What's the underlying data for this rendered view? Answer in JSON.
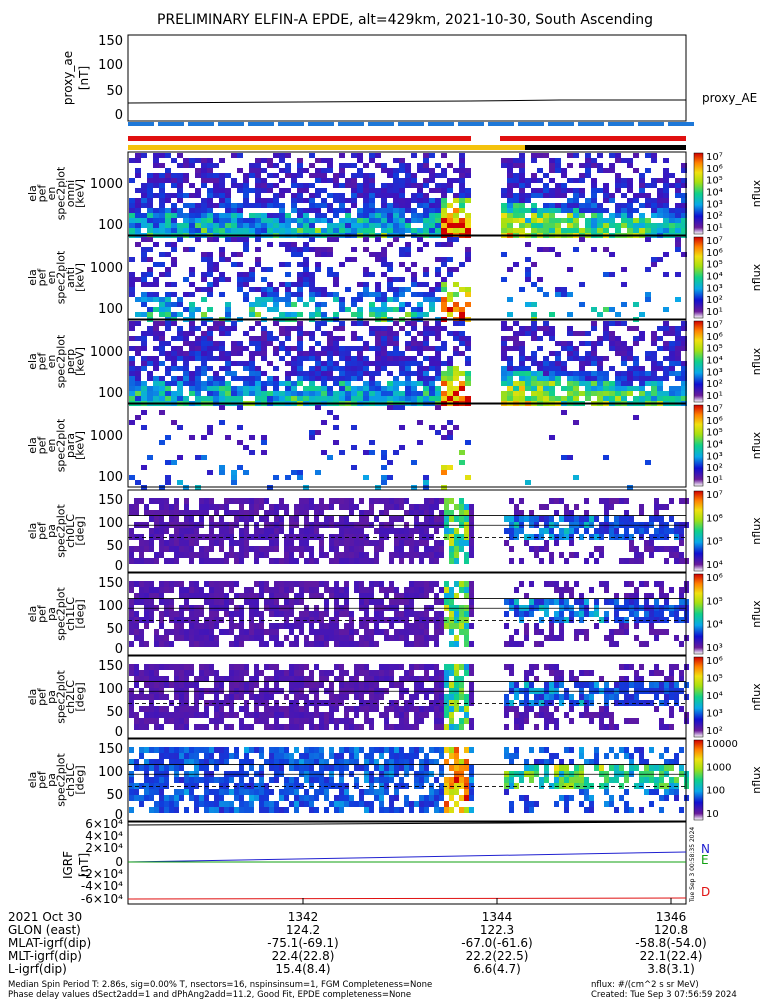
{
  "title": "PRELIMINARY ELFIN-A EPDE, alt=429km, 2021-10-30, South Ascending",
  "colors": {
    "black": "#000000",
    "state_blue": "#1e78d8",
    "state_red": "#e01010",
    "state_yellow": "#f4c20c",
    "n_line": "#2020d0",
    "e_line": "#10a010",
    "d_line": "#e01010"
  },
  "proxy_ae": {
    "ylabel": [
      "proxy_ae",
      "[nT]"
    ],
    "yticks": [
      "150",
      "100",
      "50",
      "0"
    ],
    "label": "proxy_AE",
    "ylim": [
      0,
      160
    ]
  },
  "energy_panels": [
    {
      "ylabel": [
        "ela",
        "pef",
        "en",
        "spec2plot",
        "omni",
        "[keV]"
      ],
      "yticks": [
        "1000",
        "100"
      ],
      "cb_ticks": [
        "10⁷",
        "10⁶",
        "10⁵",
        "10⁴",
        "10³",
        "10²",
        "10¹"
      ],
      "cb_label": "nflux"
    },
    {
      "ylabel": [
        "ela",
        "pef",
        "en",
        "spec2plot",
        "anti",
        "[keV]"
      ],
      "yticks": [
        "1000",
        "100"
      ],
      "cb_ticks": [
        "10⁷",
        "10⁶",
        "10⁵",
        "10⁴",
        "10³",
        "10²",
        "10¹"
      ],
      "cb_label": "nflux"
    },
    {
      "ylabel": [
        "ela",
        "pef",
        "en",
        "spec2plot",
        "perp",
        "[keV]"
      ],
      "yticks": [
        "1000",
        "100"
      ],
      "cb_ticks": [
        "10⁷",
        "10⁶",
        "10⁵",
        "10⁴",
        "10³",
        "10²",
        "10¹"
      ],
      "cb_label": "nflux"
    },
    {
      "ylabel": [
        "ela",
        "pef",
        "en",
        "spec2plot",
        "para",
        "[keV]"
      ],
      "yticks": [
        "1000",
        "100"
      ],
      "cb_ticks": [
        "10⁷",
        "10⁶",
        "10⁵",
        "10⁴",
        "10³",
        "10²",
        "10¹"
      ],
      "cb_label": "nflux"
    }
  ],
  "pitch_panels": [
    {
      "ylabel": [
        "ela",
        "pef",
        "pa",
        "spec2plot",
        "ch0LC",
        "[deg]"
      ],
      "yticks": [
        "150",
        "100",
        "50",
        "0"
      ],
      "cb_ticks": [
        "10⁷",
        "10⁶",
        "10⁵",
        "10⁴"
      ],
      "cb_label": "nflux"
    },
    {
      "ylabel": [
        "ela",
        "pef",
        "pa",
        "spec2plot",
        "ch1LC",
        "[deg]"
      ],
      "yticks": [
        "150",
        "100",
        "50",
        "0"
      ],
      "cb_ticks": [
        "10⁶",
        "10⁵",
        "10⁴",
        "10³"
      ],
      "cb_label": "nflux"
    },
    {
      "ylabel": [
        "ela",
        "pef",
        "pa",
        "spec2plot",
        "ch2LC",
        "[deg]"
      ],
      "yticks": [
        "150",
        "100",
        "50",
        "0"
      ],
      "cb_ticks": [
        "10⁶",
        "10⁵",
        "10⁴",
        "10³",
        "10²"
      ],
      "cb_label": "nflux"
    },
    {
      "ylabel": [
        "ela",
        "pef",
        "pa",
        "spec2plot",
        "ch3LC",
        "[deg]"
      ],
      "yticks": [
        "150",
        "100",
        "50",
        "0"
      ],
      "cb_ticks": [
        "10000",
        "1000",
        "100",
        "10"
      ],
      "cb_label": "nflux"
    }
  ],
  "igrf": {
    "ylabel": [
      "IGRF",
      "[nT]"
    ],
    "yticks": [
      "6×10⁴",
      "4×10⁴",
      "2×10⁴",
      "0",
      "-2×10⁴",
      "-4×10⁴",
      "-6×10⁴"
    ],
    "legend": [
      "N",
      "E",
      "D"
    ],
    "side_text": "Tue Sep 3 00:58:35 2024"
  },
  "footer": {
    "rows": [
      {
        "label": "2021 Oct 30",
        "values": [
          "1342",
          "1344",
          "1346"
        ]
      },
      {
        "label": "GLON (east)",
        "values": [
          "124.2",
          "122.3",
          "120.8"
        ]
      },
      {
        "label": "MLAT-igrf(dip)",
        "values": [
          "-75.1(-69.1)",
          "-67.0(-61.6)",
          "-58.8(-54.0)"
        ]
      },
      {
        "label": "MLT-igrf(dip)",
        "values": [
          "22.4(22.8)",
          "22.2(22.5)",
          "22.1(22.4)"
        ]
      },
      {
        "label": "L-igrf(dip)",
        "values": [
          "15.4(8.4)",
          "6.6(4.7)",
          "3.8(3.1)"
        ]
      }
    ],
    "note_left_1": "Median Spin Period T: 2.86s, sig=0.00% T, nsectors=16, nspinsinsum=1, FGM Completeness=None",
    "note_left_2": "Phase delay values dSect2add=1 and dPhAng2add=11.2, Good Fit, EPDE completeness=None",
    "note_right_1": "nflux: #/(cm^2 s sr MeV)",
    "note_right_2": "Created: Tue Sep  3 07:56:59 2024"
  },
  "chart_data": {
    "type": "heatmap",
    "title": "PRELIMINARY ELFIN-A EPDE, alt=429km, 2021-10-30, South Ascending",
    "x_ticks": [
      "1342",
      "1344",
      "1346"
    ],
    "series": [
      {
        "name": "proxy_AE",
        "type": "line",
        "units": "nT",
        "values": [
          22,
          23,
          24,
          26
        ]
      },
      {
        "name": "N",
        "type": "line",
        "units": "nT",
        "values": [
          3000,
          8000,
          12000,
          18000
        ]
      },
      {
        "name": "E",
        "type": "line",
        "units": "nT",
        "values": [
          0,
          0,
          0,
          0
        ]
      },
      {
        "name": "D",
        "type": "line",
        "units": "nT",
        "values": [
          -57000,
          -57000,
          -56500,
          -56000
        ]
      }
    ],
    "energy_ylim_keV": [
      60,
      4000
    ],
    "pitch_ylim_deg": [
      0,
      180
    ],
    "colorbar_label": "nflux"
  }
}
